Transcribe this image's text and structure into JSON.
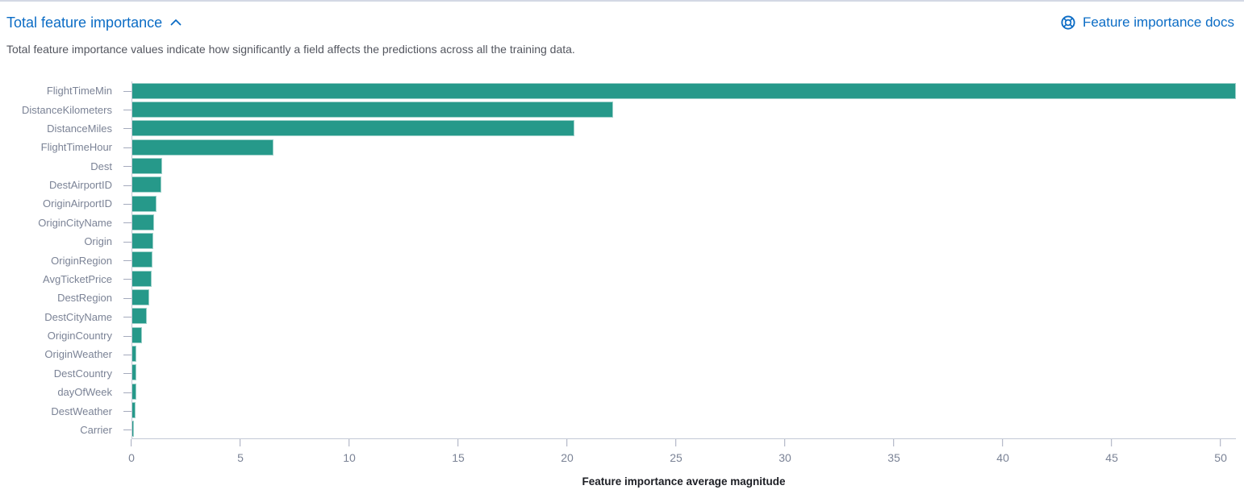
{
  "header": {
    "title": "Total feature importance",
    "collapse_icon": "chevron-up-icon",
    "docs_link_label": "Feature importance docs",
    "docs_icon": "help-life-ring-icon"
  },
  "description": "Total feature importance values indicate how significantly a field affects the predictions across all the training data.",
  "theme": {
    "link_color": "#0b6cc5",
    "bar_color": "#26998a",
    "muted_text_color": "#7b8396",
    "description_color": "#53565f",
    "axis_line_color": "#c3c9d5",
    "tick_color": "#a5abbd",
    "axis_title_color": "#1c1e24",
    "top_border_color": "#d3d8e4"
  },
  "chart_data": {
    "type": "bar",
    "orientation": "horizontal",
    "title": "",
    "xlabel": "Feature importance average magnitude",
    "ylabel": "",
    "xlim": [
      0,
      50.7
    ],
    "xticks": [
      0,
      5,
      10,
      15,
      20,
      25,
      30,
      35,
      40,
      45,
      50
    ],
    "grid": false,
    "legend": false,
    "categories": [
      "FlightTimeMin",
      "DistanceKilometers",
      "DistanceMiles",
      "FlightTimeHour",
      "Dest",
      "DestAirportID",
      "OriginAirportID",
      "OriginCityName",
      "Origin",
      "OriginRegion",
      "AvgTicketPrice",
      "DestRegion",
      "DestCityName",
      "OriginCountry",
      "OriginWeather",
      "DestCountry",
      "dayOfWeek",
      "DestWeather",
      "Carrier"
    ],
    "values": [
      50.7,
      22.1,
      20.3,
      6.5,
      1.38,
      1.35,
      1.1,
      1.0,
      0.97,
      0.92,
      0.88,
      0.78,
      0.65,
      0.45,
      0.2,
      0.19,
      0.17,
      0.14,
      0.06
    ]
  }
}
